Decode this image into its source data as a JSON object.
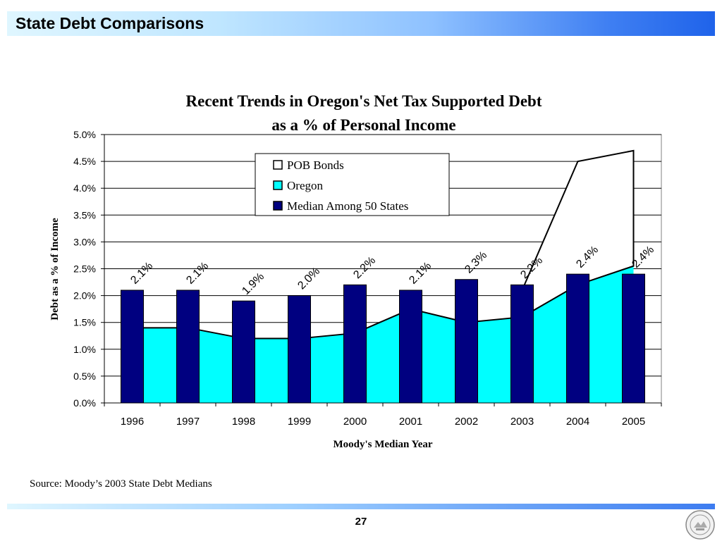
{
  "slide": {
    "title": "State Debt Comparisons",
    "source": "Source: Moody’s 2003 State Debt Medians",
    "page_number": "27"
  },
  "colors": {
    "pob_fill": "#ffffff",
    "oregon_fill": "#00ffff",
    "median_fill": "#000080",
    "outline": "#000000"
  },
  "chart_data": {
    "type": "bar",
    "title": "Recent Trends in Oregon's Net Tax Supported Debt",
    "subtitle": "as a % of Personal Income",
    "xlabel": "Moody's Median Year",
    "ylabel": "Debt as a  % of Income",
    "ylim": [
      0,
      5
    ],
    "y_ticks": [
      "0.0%",
      "0.5%",
      "1.0%",
      "1.5%",
      "2.0%",
      "2.5%",
      "3.0%",
      "3.5%",
      "4.0%",
      "4.5%",
      "5.0%"
    ],
    "categories": [
      "1996",
      "1997",
      "1998",
      "1999",
      "2000",
      "2001",
      "2002",
      "2003",
      "2004",
      "2005"
    ],
    "legend_position": "top-center",
    "grid": true,
    "legend": [
      "POB Bonds",
      "Oregon",
      "Median Among 50 States"
    ],
    "series": [
      {
        "name": "POB Bonds",
        "type": "area",
        "total_values": [
          null,
          null,
          null,
          null,
          null,
          null,
          null,
          2.1,
          4.5,
          4.7
        ]
      },
      {
        "name": "Oregon",
        "type": "area",
        "values": [
          1.4,
          1.4,
          1.2,
          1.2,
          1.3,
          1.75,
          1.5,
          1.6,
          2.2,
          2.55
        ]
      },
      {
        "name": "Median Among 50 States",
        "type": "bar",
        "values": [
          2.1,
          2.1,
          1.9,
          2.0,
          2.2,
          2.1,
          2.3,
          2.2,
          2.4,
          2.4
        ],
        "labels": [
          "2.1%",
          "2.1%",
          "1.9%",
          "2.0%",
          "2.2%",
          "2.1%",
          "2.3%",
          "2.2%",
          "2.4%",
          "2.4%"
        ]
      }
    ]
  }
}
